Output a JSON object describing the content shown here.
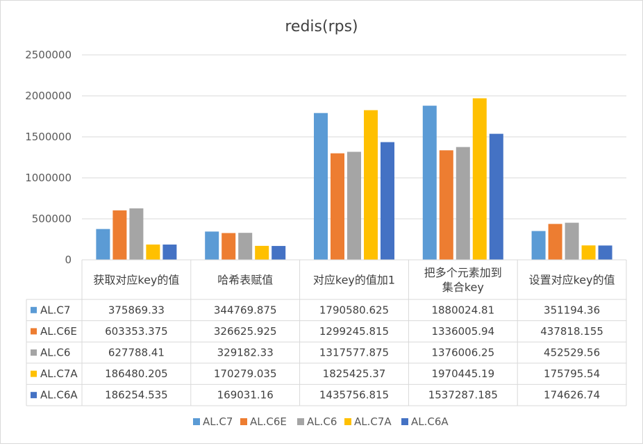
{
  "chart_data": {
    "type": "bar",
    "title": "redis(rps)",
    "categories": [
      "获取对应key的值",
      "哈希表赋值",
      "对应key的值加1",
      "把多个元素加到集合key",
      "设置对应key的值"
    ],
    "category_lines": [
      [
        "获取对应key的值"
      ],
      [
        "哈希表赋值"
      ],
      [
        "对应key的值加1"
      ],
      [
        "把多个元素加到",
        "集合key"
      ],
      [
        "设置对应key的值"
      ]
    ],
    "ylim": [
      0,
      2500000
    ],
    "yticks": [
      0,
      500000,
      1000000,
      1500000,
      2000000,
      2500000
    ],
    "ytick_labels": [
      "0",
      "500000",
      "1000000",
      "1500000",
      "2000000",
      "2500000"
    ],
    "grid": true,
    "legend_position": "bottom",
    "series": [
      {
        "name": "AL.C7",
        "color": "#5b9bd5",
        "values": [
          375869.33,
          344769.875,
          1790580.625,
          1880024.81,
          351194.36
        ],
        "labels": [
          "375869.33",
          "344769.875",
          "1790580.625",
          "1880024.81",
          "351194.36"
        ]
      },
      {
        "name": "AL.C6E",
        "color": "#ed7d31",
        "values": [
          603353.375,
          326625.925,
          1299245.815,
          1336005.94,
          437818.155
        ],
        "labels": [
          "603353.375",
          "326625.925",
          "1299245.815",
          "1336005.94",
          "437818.155"
        ]
      },
      {
        "name": "AL.C6",
        "color": "#a5a5a5",
        "values": [
          627788.41,
          329182.33,
          1317577.875,
          1376006.25,
          452529.56
        ],
        "labels": [
          "627788.41",
          "329182.33",
          "1317577.875",
          "1376006.25",
          "452529.56"
        ]
      },
      {
        "name": "AL.C7A",
        "color": "#ffc000",
        "values": [
          186480.205,
          170279.035,
          1825425.37,
          1970445.19,
          175795.54
        ],
        "labels": [
          "186480.205",
          "170279.035",
          "1825425.37",
          "1970445.19",
          "175795.54"
        ]
      },
      {
        "name": "AL.C6A",
        "color": "#4472c4",
        "values": [
          186254.535,
          169031.16,
          1435756.815,
          1537287.185,
          174626.74
        ],
        "labels": [
          "186254.535",
          "169031.16",
          "1435756.815",
          "1537287.185",
          "174626.74"
        ]
      }
    ]
  }
}
